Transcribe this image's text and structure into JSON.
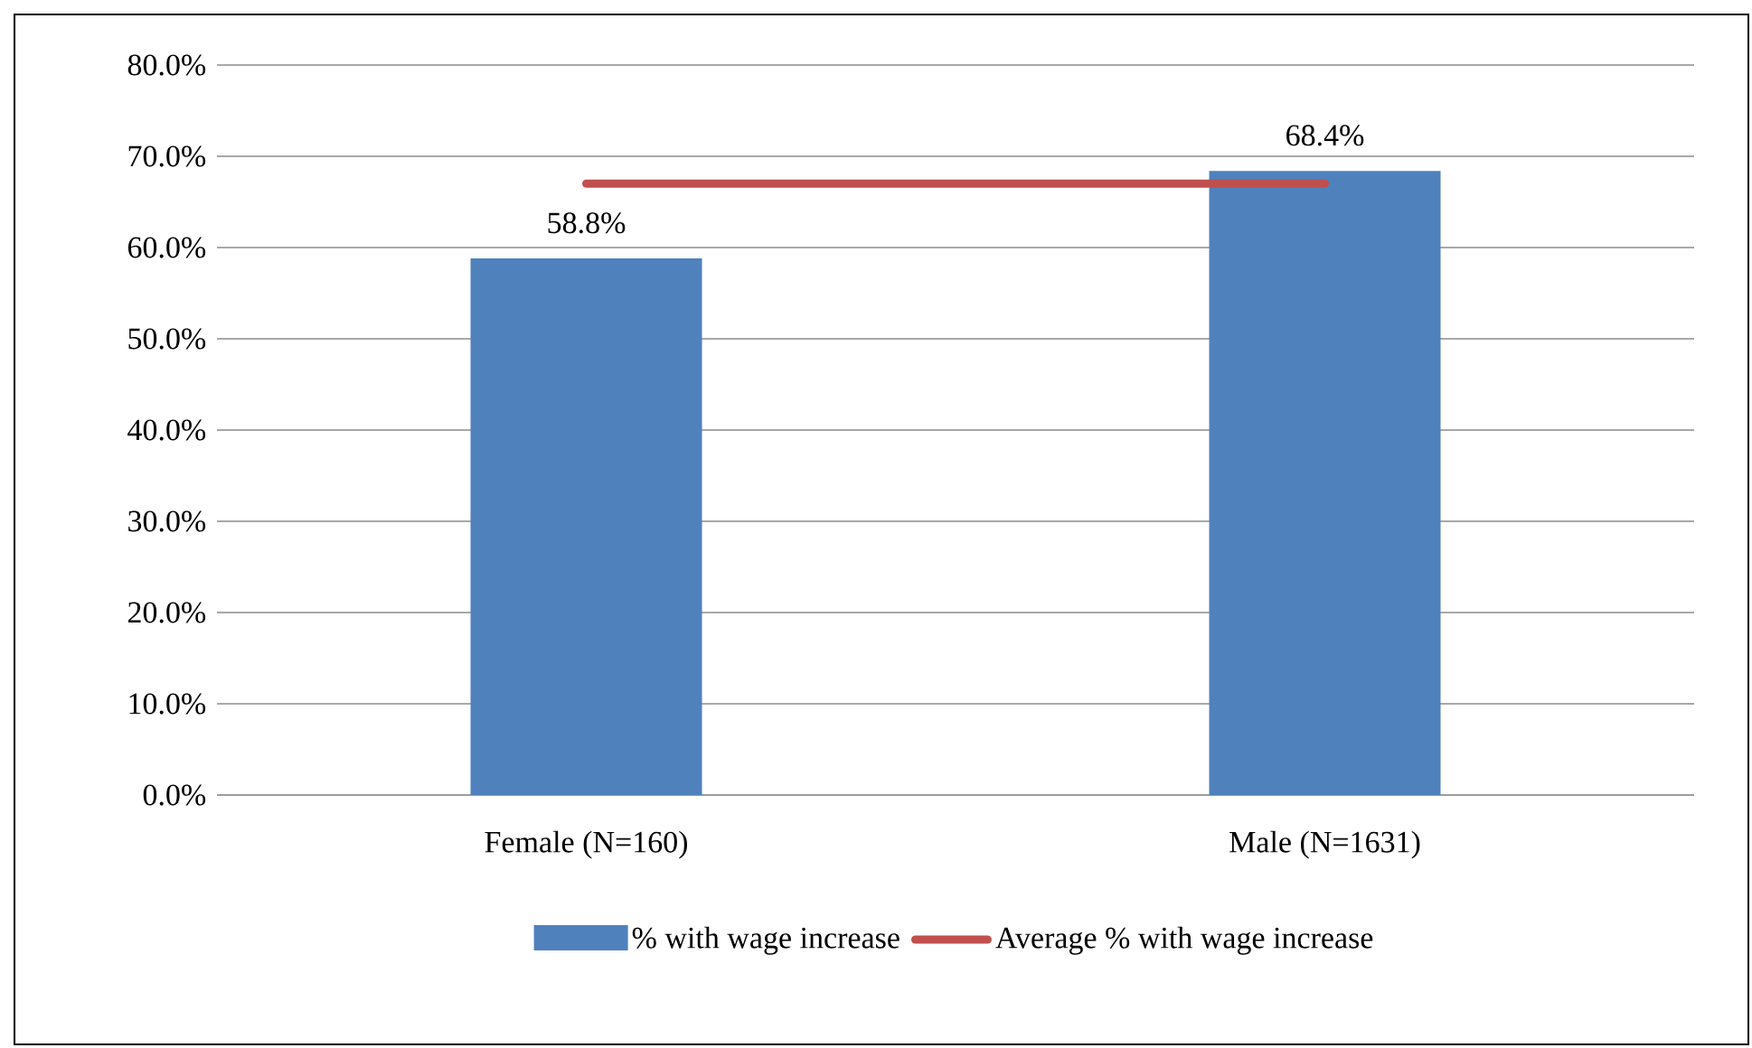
{
  "chart_data": {
    "type": "bar",
    "categories": [
      "Female (N=160)",
      "Male (N=1631)"
    ],
    "series": [
      {
        "name": "% with wage increase",
        "color": "#4f81bd",
        "values": [
          58.8,
          68.4
        ],
        "value_labels": [
          "58.8%",
          "68.4%"
        ]
      },
      {
        "name": "Average % with wage increase",
        "type": "line",
        "color": "#c0504d",
        "values": [
          67,
          67
        ]
      }
    ],
    "ylim": [
      0,
      80
    ],
    "yticks": [
      {
        "value": 0,
        "label": "0.0%"
      },
      {
        "value": 10,
        "label": "10.0%"
      },
      {
        "value": 20,
        "label": "20.0%"
      },
      {
        "value": 30,
        "label": "30.0%"
      },
      {
        "value": 40,
        "label": "40.0%"
      },
      {
        "value": 50,
        "label": "50.0%"
      },
      {
        "value": 60,
        "label": "60.0%"
      },
      {
        "value": 70,
        "label": "70.0%"
      },
      {
        "value": 80,
        "label": "80.0%"
      }
    ],
    "grid": "y",
    "legend": "bottom"
  }
}
